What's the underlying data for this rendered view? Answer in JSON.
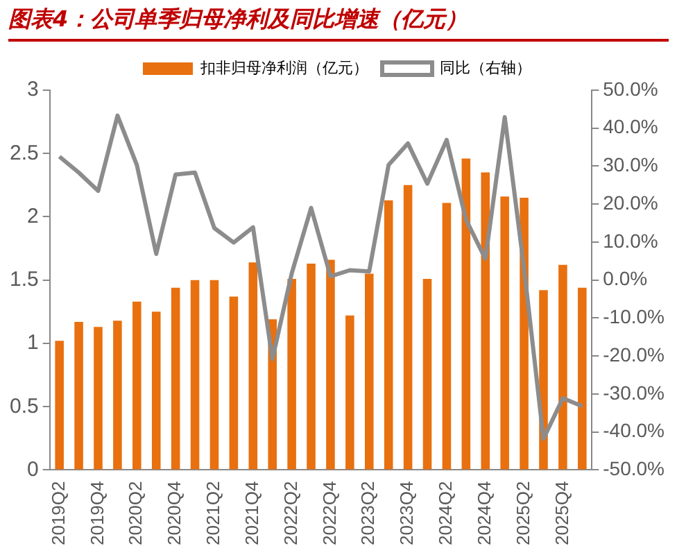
{
  "chart_data": {
    "type": "bar",
    "title": "图表4：公司单季归母净利及同比增速（亿元）",
    "categories": [
      "2019Q2",
      null,
      "2019Q4",
      null,
      "2020Q2",
      null,
      "2020Q4",
      null,
      "2021Q2",
      null,
      "2021Q4",
      null,
      "2022Q2",
      null,
      "2022Q4",
      null,
      "2023Q2",
      null,
      "2023Q4",
      null,
      "2024Q2",
      null,
      "2024Q4",
      null,
      "2025Q2",
      null,
      "2025Q4",
      null
    ],
    "series": [
      {
        "name": "扣非归母净利润（亿元）",
        "color": "#e8700f",
        "values": [
          1.02,
          1.17,
          1.13,
          1.18,
          1.33,
          1.25,
          1.44,
          1.5,
          1.5,
          1.37,
          1.64,
          1.19,
          1.51,
          1.63,
          1.66,
          1.22,
          1.55,
          2.13,
          2.25,
          1.51,
          2.11,
          2.46,
          2.35,
          2.16,
          2.15,
          1.42,
          1.62,
          1.44
        ]
      },
      {
        "name": "同比（右轴）",
        "type": "line",
        "axis": "y2",
        "color": "#8c8c8c",
        "values": [
          32.5,
          28.3,
          23.5,
          43.3,
          30.3,
          6.9,
          27.8,
          28.3,
          13.7,
          9.9,
          13.9,
          -20.8,
          1.8,
          19,
          1,
          2.6,
          2.3,
          30.3,
          36,
          25.4,
          36.9,
          15.9,
          5.6,
          42.9,
          3,
          -41.8,
          -31.1,
          -33.2
        ]
      }
    ],
    "ylim": [
      0,
      3
    ],
    "yticks": [
      0,
      0.5,
      1,
      1.5,
      2,
      2.5,
      3
    ],
    "y2lim": [
      -50,
      50
    ],
    "y2ticks": [
      {
        "value": -50,
        "label": "-50.0%"
      },
      {
        "value": -40,
        "label": "-40.0%"
      },
      {
        "value": -30,
        "label": "-30.0%"
      },
      {
        "value": -20,
        "label": "-20.0%"
      },
      {
        "value": -10,
        "label": "-10.0%"
      },
      {
        "value": 0,
        "label": "0.0%"
      },
      {
        "value": 10,
        "label": "10.0%"
      },
      {
        "value": 20,
        "label": "20.0%"
      },
      {
        "value": 30,
        "label": "30.0%"
      },
      {
        "value": 40,
        "label": "40.0%"
      },
      {
        "value": 50,
        "label": "50.0%"
      }
    ],
    "legend": "top",
    "grid": false,
    "marker": "none"
  }
}
